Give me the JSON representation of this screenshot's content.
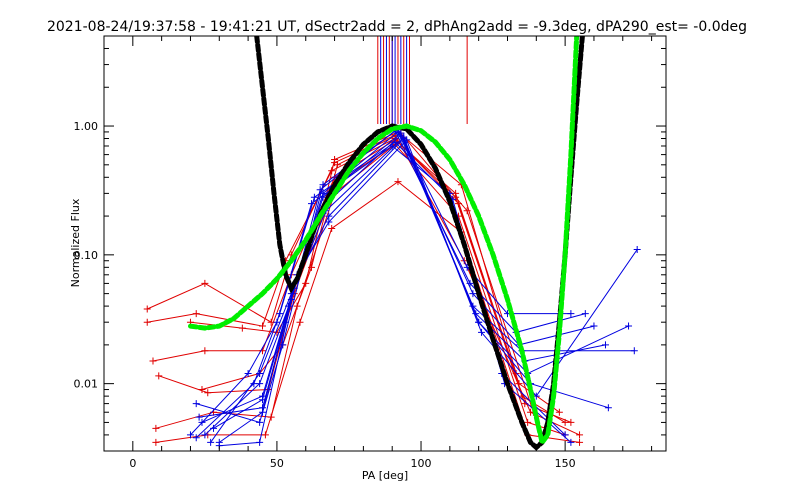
{
  "chart_data": {
    "type": "line",
    "title": "2021-08-24/19:37:58 - 19:41:21 UT, dSectr2add = 2, dPhAng2add = -9.3deg, dPA290_est= -0.0deg",
    "xlabel": "PA [deg]",
    "ylabel": "Normalized Flux",
    "xlim": [
      -10,
      185
    ],
    "ylim": [
      0.003,
      5.0
    ],
    "yscale": "log",
    "x_ticks": [
      0,
      50,
      100,
      150
    ],
    "x_tick_labels": [
      "0",
      "50",
      "100",
      "150"
    ],
    "y_ticks": [
      0.01,
      0.1,
      1.0
    ],
    "y_tick_labels": [
      "0.01",
      "0.10",
      "1.00"
    ],
    "grid": false,
    "colors": {
      "red": "#e00000",
      "blue": "#0000e0",
      "black": "#000000",
      "green": "#00ee00"
    },
    "vertical_markers": {
      "red": [
        85,
        87,
        89,
        90,
        92,
        94,
        96,
        116
      ],
      "blue": [
        86,
        88,
        90,
        91,
        93,
        95
      ]
    },
    "series": [
      {
        "color": "red",
        "x": [
          5,
          25,
          48,
          55,
          70,
          91,
          115,
          138,
          155
        ],
        "y": [
          0.038,
          0.06,
          0.03,
          0.1,
          0.52,
          0.85,
          0.09,
          0.006,
          0.004
        ]
      },
      {
        "color": "red",
        "x": [
          5,
          22,
          45,
          53,
          69,
          91,
          113,
          135,
          150
        ],
        "y": [
          0.03,
          0.035,
          0.028,
          0.09,
          0.45,
          0.8,
          0.25,
          0.008,
          0.005
        ]
      },
      {
        "color": "red",
        "x": [
          7,
          25,
          45,
          55,
          70,
          91,
          112,
          134,
          148
        ],
        "y": [
          0.015,
          0.018,
          0.018,
          0.07,
          0.4,
          0.78,
          0.3,
          0.01,
          0.006
        ]
      },
      {
        "color": "red",
        "x": [
          9,
          26,
          47,
          56,
          70,
          92,
          112,
          136,
          152
        ],
        "y": [
          0.0115,
          0.0085,
          0.009,
          0.05,
          0.35,
          0.75,
          0.28,
          0.007,
          0.005
        ]
      },
      {
        "color": "red",
        "x": [
          8,
          28,
          48,
          57,
          70,
          91,
          113,
          137,
          150
        ],
        "y": [
          0.0045,
          0.006,
          0.0055,
          0.04,
          0.3,
          0.72,
          0.2,
          0.005,
          0.004
        ]
      },
      {
        "color": "red",
        "x": [
          8,
          26,
          46,
          58,
          69,
          92,
          114,
          137,
          155
        ],
        "y": [
          0.0035,
          0.004,
          0.004,
          0.03,
          0.16,
          0.37,
          0.15,
          0.004,
          0.0035
        ]
      },
      {
        "color": "red",
        "x": [
          20,
          38,
          50,
          60,
          70,
          92,
          114,
          133
        ],
        "y": [
          0.03,
          0.027,
          0.025,
          0.06,
          0.55,
          0.9,
          0.35,
          0.012
        ]
      },
      {
        "color": "red",
        "x": [
          24,
          44,
          52,
          62,
          71,
          93,
          116,
          139
        ],
        "y": [
          0.009,
          0.012,
          0.02,
          0.08,
          0.5,
          0.88,
          0.22,
          0.006
        ]
      },
      {
        "color": "blue",
        "x": [
          22,
          44,
          52,
          66,
          92,
          116,
          130,
          152
        ],
        "y": [
          0.007,
          0.005,
          0.02,
          0.35,
          0.95,
          0.08,
          0.035,
          0.035
        ]
      },
      {
        "color": "blue",
        "x": [
          23,
          45,
          53,
          65,
          91,
          117,
          133,
          157
        ],
        "y": [
          0.0055,
          0.0065,
          0.03,
          0.32,
          0.92,
          0.06,
          0.025,
          0.035
        ]
      },
      {
        "color": "blue",
        "x": [
          24,
          45,
          54,
          66,
          92,
          118,
          134,
          160
        ],
        "y": [
          0.005,
          0.008,
          0.04,
          0.3,
          0.9,
          0.05,
          0.02,
          0.028
        ]
      },
      {
        "color": "blue",
        "x": [
          25,
          44,
          55,
          66,
          93,
          118,
          135,
          174
        ],
        "y": [
          0.004,
          0.01,
          0.045,
          0.28,
          0.88,
          0.04,
          0.018,
          0.018
        ]
      },
      {
        "color": "blue",
        "x": [
          27,
          44,
          55,
          67,
          93,
          119,
          136,
          164
        ],
        "y": [
          0.0035,
          0.012,
          0.05,
          0.25,
          0.85,
          0.035,
          0.015,
          0.02
        ]
      },
      {
        "color": "blue",
        "x": [
          28,
          45,
          56,
          67,
          94,
          120,
          137,
          172
        ],
        "y": [
          0.0045,
          0.0075,
          0.055,
          0.22,
          0.82,
          0.03,
          0.012,
          0.028
        ]
      },
      {
        "color": "blue",
        "x": [
          30,
          45,
          56,
          68,
          94,
          120,
          138,
          165
        ],
        "y": [
          0.0035,
          0.006,
          0.06,
          0.2,
          0.8,
          0.03,
          0.01,
          0.0065
        ]
      },
      {
        "color": "blue",
        "x": [
          30,
          44,
          57,
          68,
          95,
          121,
          140,
          175
        ],
        "y": [
          0.0033,
          0.0035,
          0.07,
          0.18,
          0.78,
          0.025,
          0.008,
          0.11
        ]
      },
      {
        "color": "blue",
        "x": [
          20,
          40,
          50,
          62,
          90,
          110,
          128,
          150
        ],
        "y": [
          0.004,
          0.012,
          0.03,
          0.25,
          0.7,
          0.3,
          0.012,
          0.004
        ]
      },
      {
        "color": "blue",
        "x": [
          22,
          42,
          51,
          63,
          91,
          111,
          129,
          152
        ],
        "y": [
          0.0038,
          0.01,
          0.035,
          0.28,
          0.75,
          0.27,
          0.01,
          0.0035
        ]
      },
      {
        "color": "black",
        "dashed": true,
        "model": "peak-fit",
        "x": [
          43,
          45,
          47,
          49,
          51,
          53,
          55,
          57,
          60,
          63,
          66,
          70,
          75,
          80,
          85,
          90,
          95,
          100,
          105,
          110,
          115,
          120,
          125,
          130,
          135,
          138,
          140,
          142,
          144,
          146,
          148,
          150,
          152,
          154,
          156
        ],
        "y": [
          5.0,
          2.0,
          0.8,
          0.3,
          0.12,
          0.07,
          0.055,
          0.065,
          0.1,
          0.16,
          0.23,
          0.35,
          0.52,
          0.72,
          0.9,
          1.0,
          0.95,
          0.72,
          0.47,
          0.26,
          0.12,
          0.05,
          0.022,
          0.01,
          0.005,
          0.0035,
          0.0032,
          0.0035,
          0.005,
          0.01,
          0.03,
          0.1,
          0.4,
          1.5,
          5.0
        ]
      },
      {
        "color": "green",
        "dashed": true,
        "model": "asymmetric-fit",
        "x": [
          20,
          25,
          30,
          35,
          40,
          45,
          50,
          55,
          60,
          65,
          70,
          75,
          80,
          85,
          90,
          95,
          100,
          105,
          110,
          115,
          120,
          125,
          130,
          135,
          138,
          140,
          142,
          144,
          146,
          148,
          150,
          152,
          154
        ],
        "y": [
          0.028,
          0.027,
          0.028,
          0.032,
          0.04,
          0.05,
          0.065,
          0.09,
          0.13,
          0.2,
          0.3,
          0.45,
          0.62,
          0.8,
          0.95,
          1.0,
          0.92,
          0.75,
          0.55,
          0.35,
          0.2,
          0.1,
          0.045,
          0.018,
          0.009,
          0.0055,
          0.0035,
          0.004,
          0.008,
          0.025,
          0.1,
          0.6,
          5.0
        ]
      }
    ]
  }
}
